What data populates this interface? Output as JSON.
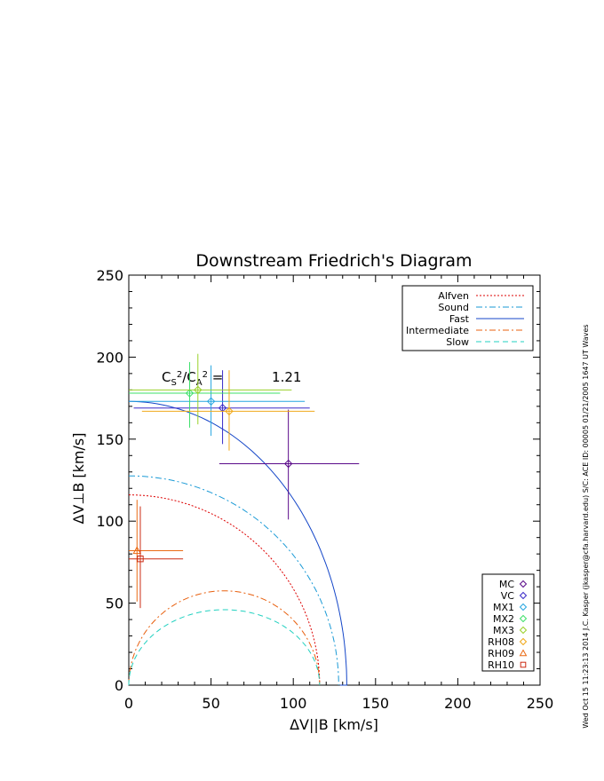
{
  "chart_data": {
    "type": "scatter",
    "title": "Downstream Friedrich's Diagram",
    "xlabel": "ΔV||B [km/s]",
    "ylabel": "ΔV⊥B [km/s]",
    "xlim": [
      0,
      250
    ],
    "ylim": [
      0,
      250
    ],
    "xticks": [
      0,
      50,
      100,
      150,
      200,
      250
    ],
    "yticks": [
      0,
      50,
      100,
      150,
      200,
      250
    ],
    "grid": false,
    "annotation": {
      "label": "C_S²/C_A² =",
      "value": "1.21",
      "x": 20,
      "y": 185
    },
    "curves_legend_position": "top-right",
    "points_legend_position": "bottom-right",
    "curves": [
      {
        "name": "Alfven",
        "color": "#dd0000",
        "dash": "2,2",
        "a": 116,
        "b": 116
      },
      {
        "name": "Sound",
        "color": "#1a9ad6",
        "dash": "7,3,2,3",
        "a": 127.6,
        "b": 127.6
      },
      {
        "name": "Fast",
        "color": "#1446c8",
        "dash": "",
        "type": "fast"
      },
      {
        "name": "Intermediate",
        "color": "#e8600f",
        "dash": "7,3,2,3",
        "type": "inner",
        "a": 116,
        "b": 57.5
      },
      {
        "name": "Slow",
        "color": "#22d1c0",
        "dash": "6,4",
        "type": "inner",
        "a": 116,
        "b": 46
      }
    ],
    "fast_curve": {
      "a": 132.5,
      "b": 173,
      "x0": 127.6
    },
    "points": [
      {
        "name": "MC",
        "color": "#5a0a8a",
        "marker": "diamond",
        "x": 97,
        "y": 135,
        "xerr": [
          55,
          140
        ],
        "yerr": [
          101,
          168
        ]
      },
      {
        "name": "VC",
        "color": "#3a2ac8",
        "marker": "diamond",
        "x": 57,
        "y": 169,
        "xerr": [
          3,
          110
        ],
        "yerr": [
          147,
          192
        ]
      },
      {
        "name": "MX1",
        "color": "#26a6e0",
        "marker": "diamond",
        "x": 50,
        "y": 173,
        "xerr": [
          0,
          107
        ],
        "yerr": [
          152,
          195
        ]
      },
      {
        "name": "MX2",
        "color": "#3ee06a",
        "marker": "diamond",
        "x": 37,
        "y": 178,
        "xerr": [
          0,
          92
        ],
        "yerr": [
          157,
          197
        ]
      },
      {
        "name": "MX3",
        "color": "#9ad02a",
        "marker": "diamond",
        "x": 42,
        "y": 180,
        "xerr": [
          0,
          99
        ],
        "yerr": [
          159,
          202
        ]
      },
      {
        "name": "RH08",
        "color": "#f0a818",
        "marker": "diamond",
        "x": 61,
        "y": 167,
        "xerr": [
          8,
          113
        ],
        "yerr": [
          143,
          192
        ]
      },
      {
        "name": "RH09",
        "color": "#ea6a14",
        "marker": "triangle",
        "x": 5,
        "y": 82,
        "xerr": [
          0,
          33
        ],
        "yerr": [
          51,
          113
        ]
      },
      {
        "name": "RH10",
        "color": "#cc2a12",
        "marker": "square",
        "x": 7,
        "y": 77,
        "xerr": [
          0,
          33
        ],
        "yerr": [
          47,
          109
        ]
      }
    ]
  },
  "side_text": "Wed Oct 15 11:23:13 2014   J.C. Kasper (jkasper@cfa.harvard.edu)   S/C: ACE ID: 00005 01/21/2005   1647 UT Waves"
}
